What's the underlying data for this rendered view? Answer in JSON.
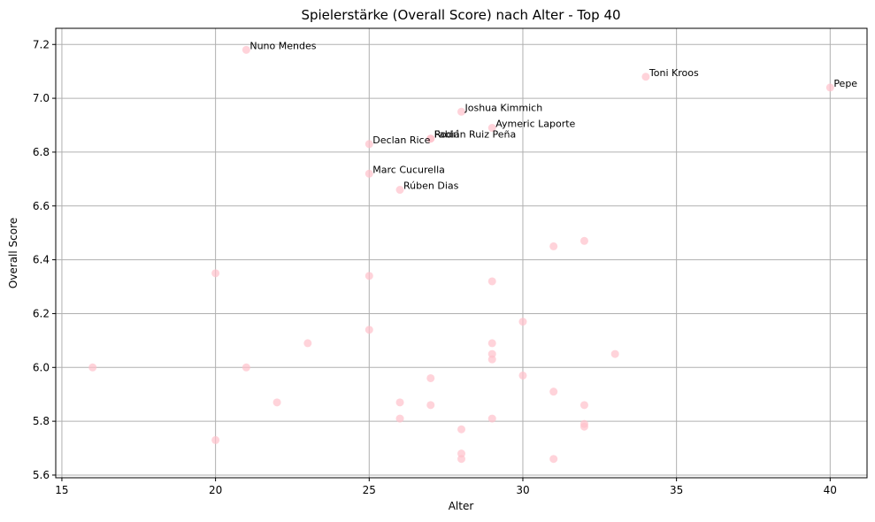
{
  "chart_data": {
    "type": "scatter",
    "title": "Spielerstärke (Overall Score) nach Alter - Top 40",
    "xlabel": "Alter",
    "ylabel": "Overall Score",
    "xlim": [
      14.8,
      41.2
    ],
    "ylim": [
      5.59,
      7.26
    ],
    "xticks": [
      15,
      20,
      25,
      30,
      35,
      40
    ],
    "yticks": [
      5.6,
      5.8,
      6.0,
      6.2,
      6.4,
      6.6,
      6.8,
      7.0,
      7.2
    ],
    "xtick_labels": [
      "15",
      "20",
      "25",
      "30",
      "35",
      "40"
    ],
    "ytick_labels": [
      "5.6",
      "5.8",
      "6.0",
      "6.2",
      "6.4",
      "6.6",
      "6.8",
      "7.0",
      "7.2"
    ],
    "grid": true,
    "point_color": "#ffc0cb",
    "points": [
      {
        "x": 21,
        "y": 7.18,
        "label": "Nuno Mendes"
      },
      {
        "x": 34,
        "y": 7.08,
        "label": "Toni Kroos"
      },
      {
        "x": 40,
        "y": 7.04,
        "label": "Pepe"
      },
      {
        "x": 28,
        "y": 6.95,
        "label": "Joshua Kimmich"
      },
      {
        "x": 29,
        "y": 6.89,
        "label": "Aymeric Laporte"
      },
      {
        "x": 27,
        "y": 6.85,
        "label": "Rodri"
      },
      {
        "x": 27,
        "y": 6.85,
        "label": "Fabián Ruiz Peña"
      },
      {
        "x": 25,
        "y": 6.83,
        "label": "Declan Rice"
      },
      {
        "x": 25,
        "y": 6.72,
        "label": "Marc Cucurella"
      },
      {
        "x": 26,
        "y": 6.66,
        "label": "Rúben Dias"
      },
      {
        "x": 32,
        "y": 6.47
      },
      {
        "x": 31,
        "y": 6.45
      },
      {
        "x": 20,
        "y": 6.35
      },
      {
        "x": 25,
        "y": 6.34
      },
      {
        "x": 29,
        "y": 6.32
      },
      {
        "x": 30,
        "y": 6.17
      },
      {
        "x": 25,
        "y": 6.14
      },
      {
        "x": 23,
        "y": 6.09
      },
      {
        "x": 29,
        "y": 6.09
      },
      {
        "x": 29,
        "y": 6.05
      },
      {
        "x": 33,
        "y": 6.05
      },
      {
        "x": 29,
        "y": 6.03
      },
      {
        "x": 16,
        "y": 6.0
      },
      {
        "x": 21,
        "y": 6.0
      },
      {
        "x": 27,
        "y": 5.96
      },
      {
        "x": 30,
        "y": 5.97
      },
      {
        "x": 31,
        "y": 5.91
      },
      {
        "x": 26,
        "y": 5.87
      },
      {
        "x": 22,
        "y": 5.87
      },
      {
        "x": 27,
        "y": 5.86
      },
      {
        "x": 32,
        "y": 5.86
      },
      {
        "x": 26,
        "y": 5.81
      },
      {
        "x": 29,
        "y": 5.81
      },
      {
        "x": 32,
        "y": 5.79
      },
      {
        "x": 32,
        "y": 5.78
      },
      {
        "x": 28,
        "y": 5.77
      },
      {
        "x": 20,
        "y": 5.73
      },
      {
        "x": 28,
        "y": 5.68
      },
      {
        "x": 28,
        "y": 5.66
      },
      {
        "x": 31,
        "y": 5.66
      }
    ]
  }
}
